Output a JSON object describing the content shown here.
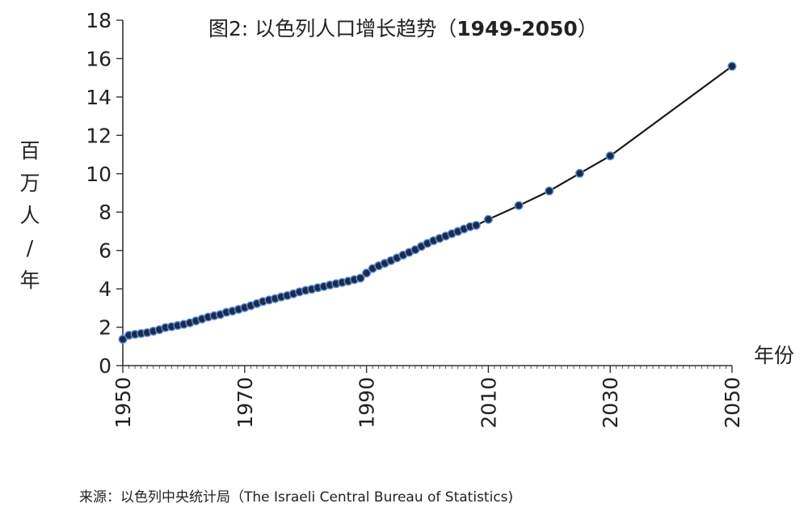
{
  "chart_data": {
    "type": "line",
    "title": "图2: 以色列人口增长趋势（1949-2050）",
    "title_prefix": "图2: 以色列人口增长趋势（",
    "title_years": "1949-2050",
    "title_suffix": "）",
    "ylabel": "百万人/年",
    "xlabel": "年份",
    "xlim": [
      1950,
      2050
    ],
    "ylim": [
      0,
      18
    ],
    "xticks": [
      "1950",
      "1970",
      "1990",
      "2010",
      "2030",
      "2050"
    ],
    "yticks": [
      "0",
      "2",
      "4",
      "6",
      "8",
      "10",
      "12",
      "14",
      "16",
      "18"
    ],
    "grid": false,
    "line_color": "#1a1a1a",
    "marker_color": "#1c2a4a",
    "marker_edge_color": "#5b8fd6",
    "series": [
      {
        "x": [
          1950,
          1951,
          1952,
          1953,
          1954,
          1955,
          1956,
          1957,
          1958,
          1959,
          1960,
          1961,
          1962,
          1963,
          1964,
          1965,
          1966,
          1967,
          1968,
          1969,
          1970,
          1971,
          1972,
          1973,
          1974,
          1975,
          1976,
          1977,
          1978,
          1979,
          1980,
          1981,
          1982,
          1983,
          1984,
          1985,
          1986,
          1987,
          1988,
          1989,
          1990,
          1991,
          1992,
          1993,
          1994,
          1995,
          1996,
          1997,
          1998,
          1999,
          2000,
          2001,
          2002,
          2003,
          2004,
          2005,
          2006,
          2007,
          2008,
          2010,
          2015,
          2020,
          2025,
          2030,
          2050
        ],
        "y": [
          1.37,
          1.58,
          1.63,
          1.67,
          1.72,
          1.79,
          1.87,
          1.98,
          2.03,
          2.09,
          2.15,
          2.23,
          2.33,
          2.43,
          2.53,
          2.6,
          2.66,
          2.78,
          2.84,
          2.93,
          3.02,
          3.12,
          3.23,
          3.34,
          3.42,
          3.49,
          3.58,
          3.65,
          3.74,
          3.84,
          3.92,
          3.98,
          4.06,
          4.12,
          4.2,
          4.27,
          4.33,
          4.4,
          4.48,
          4.56,
          4.82,
          5.06,
          5.2,
          5.33,
          5.47,
          5.61,
          5.76,
          5.9,
          6.04,
          6.21,
          6.37,
          6.51,
          6.63,
          6.75,
          6.87,
          6.99,
          7.12,
          7.24,
          7.31,
          7.62,
          8.34,
          9.1,
          10.02,
          10.93,
          15.6
        ]
      }
    ]
  },
  "source": "来源：以色列中央统计局（The Israeli Central Bureau of Statistics)"
}
